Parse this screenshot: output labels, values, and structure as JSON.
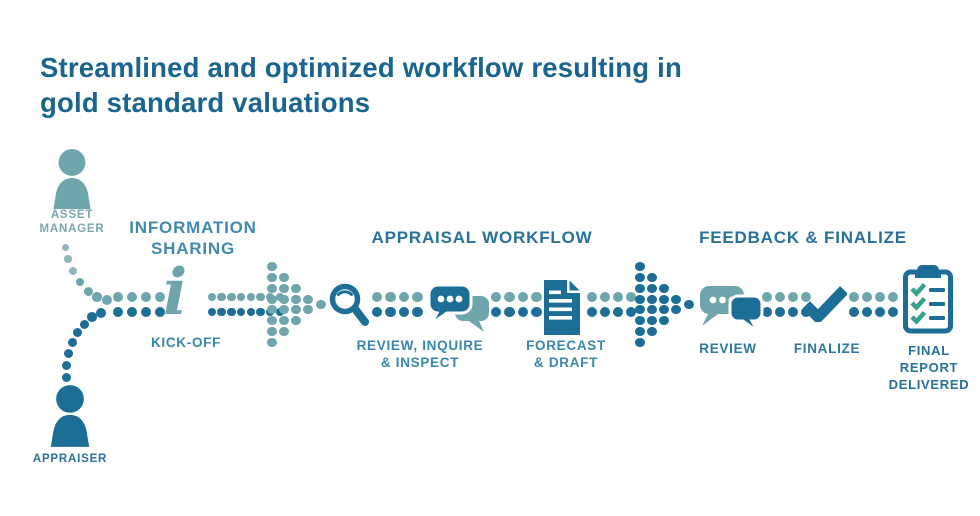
{
  "title": {
    "lines": [
      "Streamlined and optimized workflow resulting in",
      "gold standard valuations"
    ]
  },
  "actors": [
    {
      "id": "asset-manager",
      "label_lines": [
        "ASSET",
        "MANAGER"
      ]
    },
    {
      "id": "appraiser",
      "label_lines": [
        "APPRAISER"
      ]
    }
  ],
  "sections": [
    {
      "id": "information-sharing",
      "header_lines": [
        "INFORMATION",
        "SHARING"
      ]
    },
    {
      "id": "appraisal-workflow",
      "header_lines": [
        "APPRAISAL WORKFLOW"
      ]
    },
    {
      "id": "feedback-finalize",
      "header_lines": [
        "FEEDBACK & FINALIZE"
      ]
    }
  ],
  "steps": [
    {
      "id": "kick-off",
      "icons": [
        "info-icon"
      ],
      "glyph": "i",
      "label_lines": [
        "KICK-OFF"
      ]
    },
    {
      "id": "review-inquire-inspect",
      "icons": [
        "magnifier-icon",
        "chat-bubbles-icon"
      ],
      "label_lines": [
        "REVIEW, INQUIRE",
        "& INSPECT"
      ]
    },
    {
      "id": "forecast-draft",
      "icons": [
        "document-icon"
      ],
      "label_lines": [
        "FORECAST",
        "& DRAFT"
      ]
    },
    {
      "id": "review",
      "icons": [
        "chat-bubbles-icon"
      ],
      "label_lines": [
        "REVIEW"
      ]
    },
    {
      "id": "finalize",
      "icons": [
        "checkmark-icon"
      ],
      "label_lines": [
        "FINALIZE"
      ]
    },
    {
      "id": "final-report-delivered",
      "icons": [
        "clipboard-checklist-icon"
      ],
      "label_lines": [
        "FINAL",
        "REPORT",
        "DELIVERED"
      ]
    }
  ],
  "colors": {
    "teal": "#6FA6AD",
    "teal_light": "#8FB7BC",
    "teal_check": "#35A08F",
    "blue": "#1D6E96",
    "title_blue": "#19658F",
    "header_blue": "#27719B",
    "header_light_blue": "#4189AD",
    "label_blue": "#3887AC",
    "label_dark_blue": "#2B77A1",
    "actor_teal": "#79A7AB",
    "background": "#FFFFFF"
  }
}
